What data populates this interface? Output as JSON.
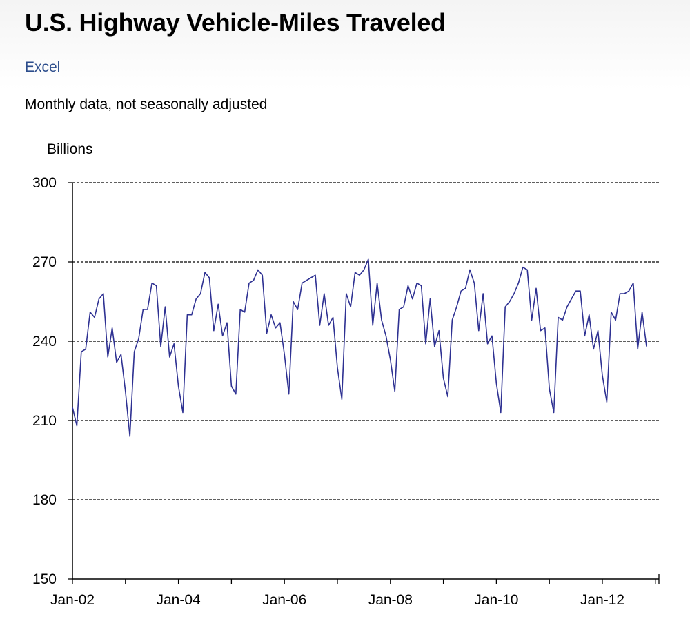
{
  "header": {
    "title": "U.S. Highway Vehicle-Miles Traveled",
    "excel_link": "Excel",
    "subtitle": "Monthly data, not seasonally adjusted"
  },
  "colors": {
    "line": "#2e3192",
    "link": "#2c4d8c"
  },
  "chart_data": {
    "type": "line",
    "title": "U.S. Highway Vehicle-Miles Traveled",
    "subtitle": "Monthly data, not seasonally adjusted",
    "ylabel": "Billions",
    "xlabel": "",
    "ylim": [
      150,
      300
    ],
    "yticks": [
      "300",
      "270",
      "240",
      "210",
      "180",
      "150"
    ],
    "xtick_labels": [
      "Jan-02",
      "Jan-04",
      "Jan-06",
      "Jan-08",
      "Jan-10",
      "Jan-12"
    ],
    "x_start": "Jan-02",
    "grid": "horizontal dashed",
    "series": [
      {
        "values": [
          215,
          208,
          236,
          237,
          251,
          249,
          256,
          258,
          234,
          245,
          232,
          235,
          221,
          204,
          236,
          241,
          252,
          252,
          262,
          261,
          238,
          253,
          234,
          239,
          223,
          213,
          250,
          250,
          256,
          258,
          266,
          264,
          244,
          254,
          242,
          247,
          223,
          220,
          252,
          251,
          262,
          263,
          267,
          265,
          243,
          250,
          245,
          247,
          235,
          220,
          255,
          252,
          262,
          263,
          264,
          265,
          246,
          258,
          246,
          249,
          230,
          218,
          258,
          253,
          266,
          265,
          267,
          271,
          246,
          262,
          248,
          242,
          233,
          221,
          252,
          253,
          261,
          256,
          262,
          261,
          239,
          256,
          238,
          244,
          226,
          219,
          248,
          253,
          259,
          260,
          267,
          262,
          244,
          258,
          239,
          242,
          224,
          213,
          253,
          255,
          258,
          262,
          268,
          267,
          248,
          260,
          244,
          245,
          222,
          213,
          249,
          248,
          253,
          256,
          259,
          259,
          242,
          250,
          237,
          244,
          227,
          217,
          251,
          248,
          258,
          258,
          259,
          262,
          237,
          251,
          238
        ]
      }
    ]
  }
}
